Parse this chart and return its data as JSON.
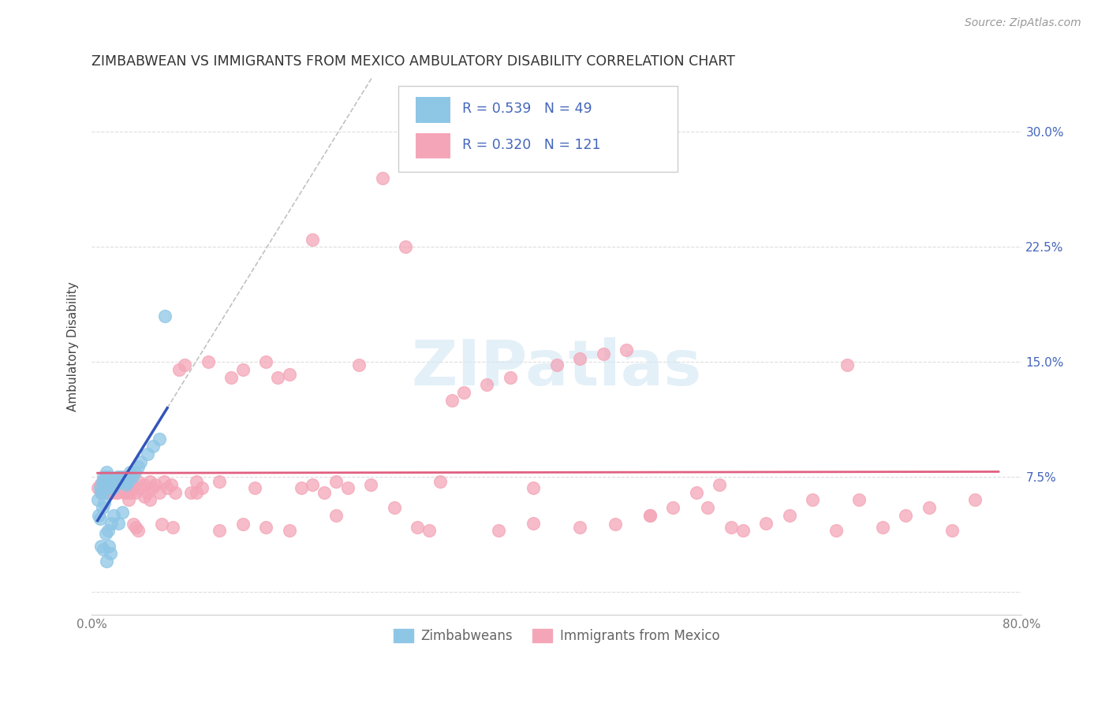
{
  "title": "ZIMBABWEAN VS IMMIGRANTS FROM MEXICO AMBULATORY DISABILITY CORRELATION CHART",
  "source": "Source: ZipAtlas.com",
  "ylabel": "Ambulatory Disability",
  "blue_color": "#8ec6e6",
  "pink_color": "#f4a6b8",
  "trend_blue_color": "#3355bb",
  "trend_pink_color": "#e06080",
  "axis_text_color": "#4466bb",
  "title_color": "#333333",
  "grid_color": "#dddddd",
  "watermark_color": "#d5e8f5",
  "xlim": [
    0.0,
    0.8
  ],
  "ylim": [
    -0.015,
    0.335
  ],
  "xticks": [
    0.0,
    0.2,
    0.4,
    0.6,
    0.8
  ],
  "yticks": [
    0.0,
    0.075,
    0.15,
    0.225,
    0.3
  ],
  "right_ytick_labels": [
    "7.5%",
    "15.0%",
    "22.5%",
    "30.0%"
  ],
  "bottom_xtick_labels": [
    "0.0%",
    "",
    "",
    "",
    "80.0%"
  ],
  "zimbabwean_x": [
    0.005,
    0.006,
    0.007,
    0.007,
    0.008,
    0.008,
    0.009,
    0.009,
    0.01,
    0.01,
    0.01,
    0.011,
    0.011,
    0.012,
    0.012,
    0.013,
    0.013,
    0.013,
    0.014,
    0.014,
    0.015,
    0.015,
    0.015,
    0.016,
    0.016,
    0.017,
    0.018,
    0.018,
    0.019,
    0.02,
    0.021,
    0.022,
    0.023,
    0.024,
    0.025,
    0.026,
    0.027,
    0.028,
    0.03,
    0.031,
    0.033,
    0.035,
    0.037,
    0.04,
    0.042,
    0.048,
    0.053,
    0.058,
    0.063
  ],
  "zimbabwean_y": [
    0.06,
    0.05,
    0.048,
    0.068,
    0.03,
    0.065,
    0.055,
    0.072,
    0.028,
    0.065,
    0.075,
    0.058,
    0.072,
    0.038,
    0.075,
    0.02,
    0.068,
    0.078,
    0.04,
    0.068,
    0.03,
    0.07,
    0.075,
    0.025,
    0.068,
    0.045,
    0.068,
    0.072,
    0.05,
    0.07,
    0.072,
    0.075,
    0.045,
    0.072,
    0.075,
    0.052,
    0.072,
    0.075,
    0.07,
    0.072,
    0.078,
    0.075,
    0.078,
    0.082,
    0.085,
    0.09,
    0.095,
    0.1,
    0.18
  ],
  "mexico_x": [
    0.005,
    0.007,
    0.008,
    0.01,
    0.011,
    0.012,
    0.013,
    0.014,
    0.015,
    0.016,
    0.017,
    0.018,
    0.019,
    0.02,
    0.021,
    0.022,
    0.023,
    0.025,
    0.026,
    0.027,
    0.028,
    0.03,
    0.031,
    0.032,
    0.033,
    0.035,
    0.038,
    0.04,
    0.042,
    0.045,
    0.048,
    0.05,
    0.052,
    0.055,
    0.058,
    0.062,
    0.065,
    0.068,
    0.072,
    0.075,
    0.08,
    0.085,
    0.09,
    0.095,
    0.1,
    0.11,
    0.12,
    0.13,
    0.14,
    0.15,
    0.16,
    0.17,
    0.18,
    0.19,
    0.2,
    0.21,
    0.22,
    0.24,
    0.26,
    0.28,
    0.3,
    0.32,
    0.34,
    0.36,
    0.38,
    0.4,
    0.42,
    0.44,
    0.46,
    0.48,
    0.5,
    0.52,
    0.54,
    0.56,
    0.58,
    0.6,
    0.62,
    0.64,
    0.66,
    0.68,
    0.7,
    0.72,
    0.74,
    0.76,
    0.65,
    0.55,
    0.45,
    0.48,
    0.42,
    0.53,
    0.35,
    0.38,
    0.31,
    0.29,
    0.27,
    0.25,
    0.23,
    0.21,
    0.19,
    0.17,
    0.15,
    0.13,
    0.11,
    0.09,
    0.07,
    0.06,
    0.05,
    0.045,
    0.04,
    0.038,
    0.036,
    0.034,
    0.032,
    0.03,
    0.028,
    0.026,
    0.024,
    0.022,
    0.02,
    0.018,
    0.016,
    0.014
  ],
  "mexico_y": [
    0.068,
    0.07,
    0.065,
    0.072,
    0.068,
    0.07,
    0.065,
    0.072,
    0.068,
    0.07,
    0.065,
    0.072,
    0.068,
    0.07,
    0.065,
    0.072,
    0.068,
    0.072,
    0.068,
    0.07,
    0.065,
    0.068,
    0.07,
    0.065,
    0.072,
    0.068,
    0.065,
    0.072,
    0.068,
    0.07,
    0.065,
    0.072,
    0.068,
    0.07,
    0.065,
    0.072,
    0.068,
    0.07,
    0.065,
    0.145,
    0.148,
    0.065,
    0.072,
    0.068,
    0.15,
    0.072,
    0.14,
    0.145,
    0.068,
    0.15,
    0.14,
    0.142,
    0.068,
    0.07,
    0.065,
    0.072,
    0.068,
    0.07,
    0.055,
    0.042,
    0.072,
    0.13,
    0.135,
    0.14,
    0.068,
    0.148,
    0.152,
    0.155,
    0.158,
    0.05,
    0.055,
    0.065,
    0.07,
    0.04,
    0.045,
    0.05,
    0.06,
    0.04,
    0.06,
    0.042,
    0.05,
    0.055,
    0.04,
    0.06,
    0.148,
    0.042,
    0.044,
    0.05,
    0.042,
    0.055,
    0.04,
    0.045,
    0.125,
    0.04,
    0.225,
    0.27,
    0.148,
    0.05,
    0.23,
    0.04,
    0.042,
    0.044,
    0.04,
    0.065,
    0.042,
    0.044,
    0.06,
    0.062,
    0.04,
    0.042,
    0.044,
    0.065,
    0.06,
    0.07,
    0.065,
    0.068,
    0.07,
    0.065,
    0.072,
    0.068,
    0.07,
    0.065
  ]
}
